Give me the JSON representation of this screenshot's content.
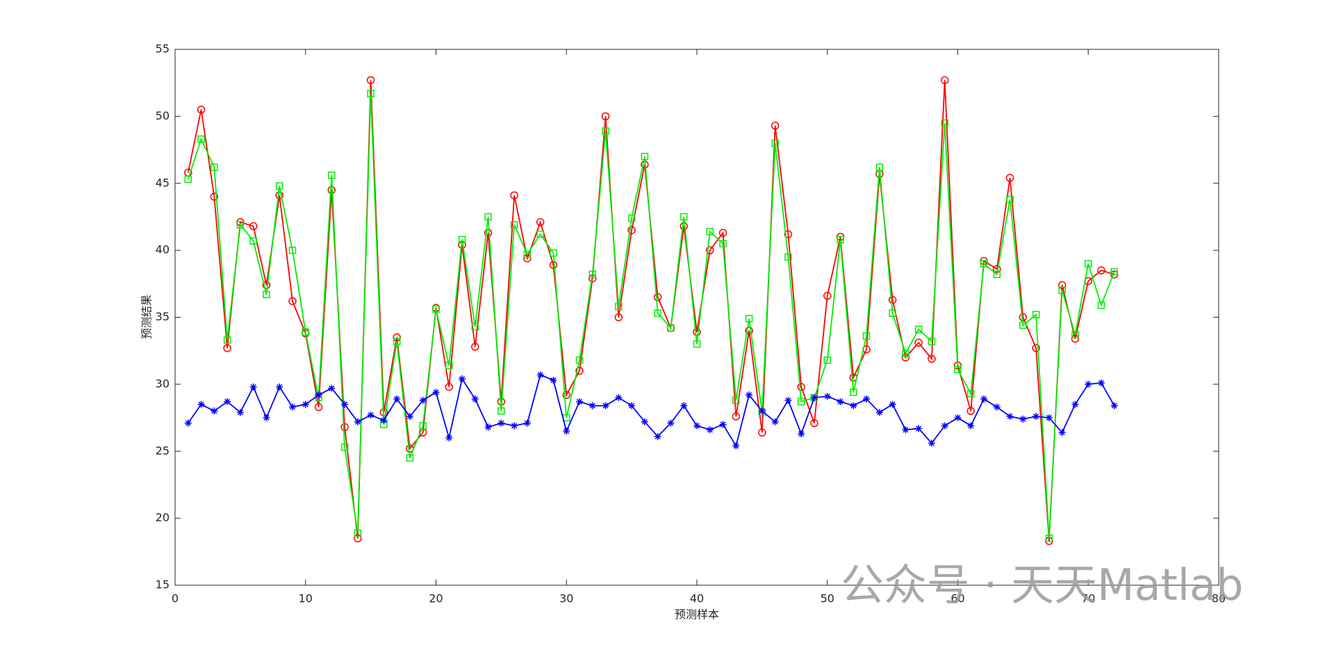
{
  "chart_data": {
    "type": "line",
    "xlabel": "预测样本",
    "ylabel": "预测结果",
    "x": [
      1,
      2,
      3,
      4,
      5,
      6,
      7,
      8,
      9,
      10,
      11,
      12,
      13,
      14,
      15,
      16,
      17,
      18,
      19,
      20,
      21,
      22,
      23,
      24,
      25,
      26,
      27,
      28,
      29,
      30,
      31,
      32,
      33,
      34,
      35,
      36,
      37,
      38,
      39,
      40,
      41,
      42,
      43,
      44,
      45,
      46,
      47,
      48,
      49,
      50,
      51,
      52,
      53,
      54,
      55,
      56,
      57,
      58,
      59,
      60,
      61,
      62,
      63,
      64,
      65,
      66,
      67,
      68,
      69,
      70,
      71,
      72
    ],
    "series": [
      {
        "color": "#ff0000",
        "marker": "circle",
        "values": [
          45.8,
          50.5,
          44.0,
          32.7,
          42.1,
          41.8,
          37.4,
          44.1,
          36.2,
          33.8,
          28.3,
          44.5,
          26.8,
          18.5,
          52.7,
          27.9,
          33.5,
          25.2,
          26.4,
          35.7,
          29.8,
          40.4,
          32.8,
          41.3,
          28.7,
          44.1,
          39.4,
          42.1,
          38.9,
          29.2,
          31.0,
          37.9,
          50.0,
          35.0,
          41.5,
          46.4,
          36.5,
          34.2,
          41.8,
          33.9,
          40.0,
          41.3,
          27.6,
          34.0,
          26.4,
          49.3,
          41.2,
          29.8,
          27.1,
          36.6,
          41.0,
          30.5,
          32.6,
          45.7,
          36.3,
          32.0,
          33.1,
          31.9,
          52.7,
          31.4,
          28.0,
          39.2,
          38.6,
          45.4,
          35.0,
          32.7,
          18.3,
          37.4,
          33.4,
          37.7,
          38.5,
          38.2
        ]
      },
      {
        "color": "#00ee00",
        "marker": "square",
        "values": [
          45.3,
          48.3,
          46.2,
          33.3,
          41.9,
          40.7,
          36.7,
          44.8,
          40.0,
          33.9,
          29.0,
          45.6,
          25.3,
          18.9,
          51.7,
          27.0,
          33.2,
          24.5,
          26.9,
          35.6,
          31.4,
          40.8,
          34.3,
          42.5,
          28.0,
          41.9,
          39.7,
          41.2,
          39.8,
          27.5,
          31.8,
          38.2,
          48.9,
          35.8,
          42.4,
          47.0,
          35.3,
          34.2,
          42.5,
          33.0,
          41.4,
          40.5,
          28.8,
          34.9,
          27.9,
          48.0,
          39.5,
          28.7,
          29.0,
          31.8,
          40.8,
          29.4,
          33.6,
          46.2,
          35.3,
          32.3,
          34.1,
          33.2,
          49.5,
          31.1,
          29.3,
          39.0,
          38.2,
          43.8,
          34.4,
          35.2,
          18.5,
          37.0,
          33.7,
          39.0,
          35.9,
          38.4
        ]
      },
      {
        "color": "#0000ff",
        "marker": "asterisk",
        "values": [
          27.1,
          28.5,
          28.0,
          28.7,
          27.9,
          29.8,
          27.5,
          29.8,
          28.3,
          28.5,
          29.2,
          29.7,
          28.5,
          27.2,
          27.7,
          27.3,
          28.9,
          27.6,
          28.8,
          29.4,
          26.0,
          30.4,
          28.9,
          26.8,
          27.1,
          26.9,
          27.1,
          30.7,
          30.3,
          26.5,
          28.7,
          28.4,
          28.4,
          29.0,
          28.4,
          27.2,
          26.1,
          27.1,
          28.4,
          26.9,
          26.6,
          27.0,
          25.4,
          29.2,
          28.0,
          27.2,
          28.8,
          26.3,
          29.0,
          29.1,
          28.7,
          28.4,
          28.9,
          27.9,
          28.5,
          26.6,
          26.7,
          25.6,
          26.9,
          27.5,
          26.9,
          28.9,
          28.3,
          27.6,
          27.4,
          27.6,
          27.5,
          26.4,
          28.5,
          30.0,
          30.1,
          28.4
        ]
      }
    ],
    "xlim": [
      0,
      80
    ],
    "xticks": [
      0,
      10,
      20,
      30,
      40,
      50,
      60,
      70,
      80
    ],
    "ylim": [
      15,
      55
    ],
    "yticks": [
      15,
      20,
      25,
      30,
      35,
      40,
      45,
      50,
      55
    ],
    "watermark": "公众号 · 天天Matlab"
  }
}
